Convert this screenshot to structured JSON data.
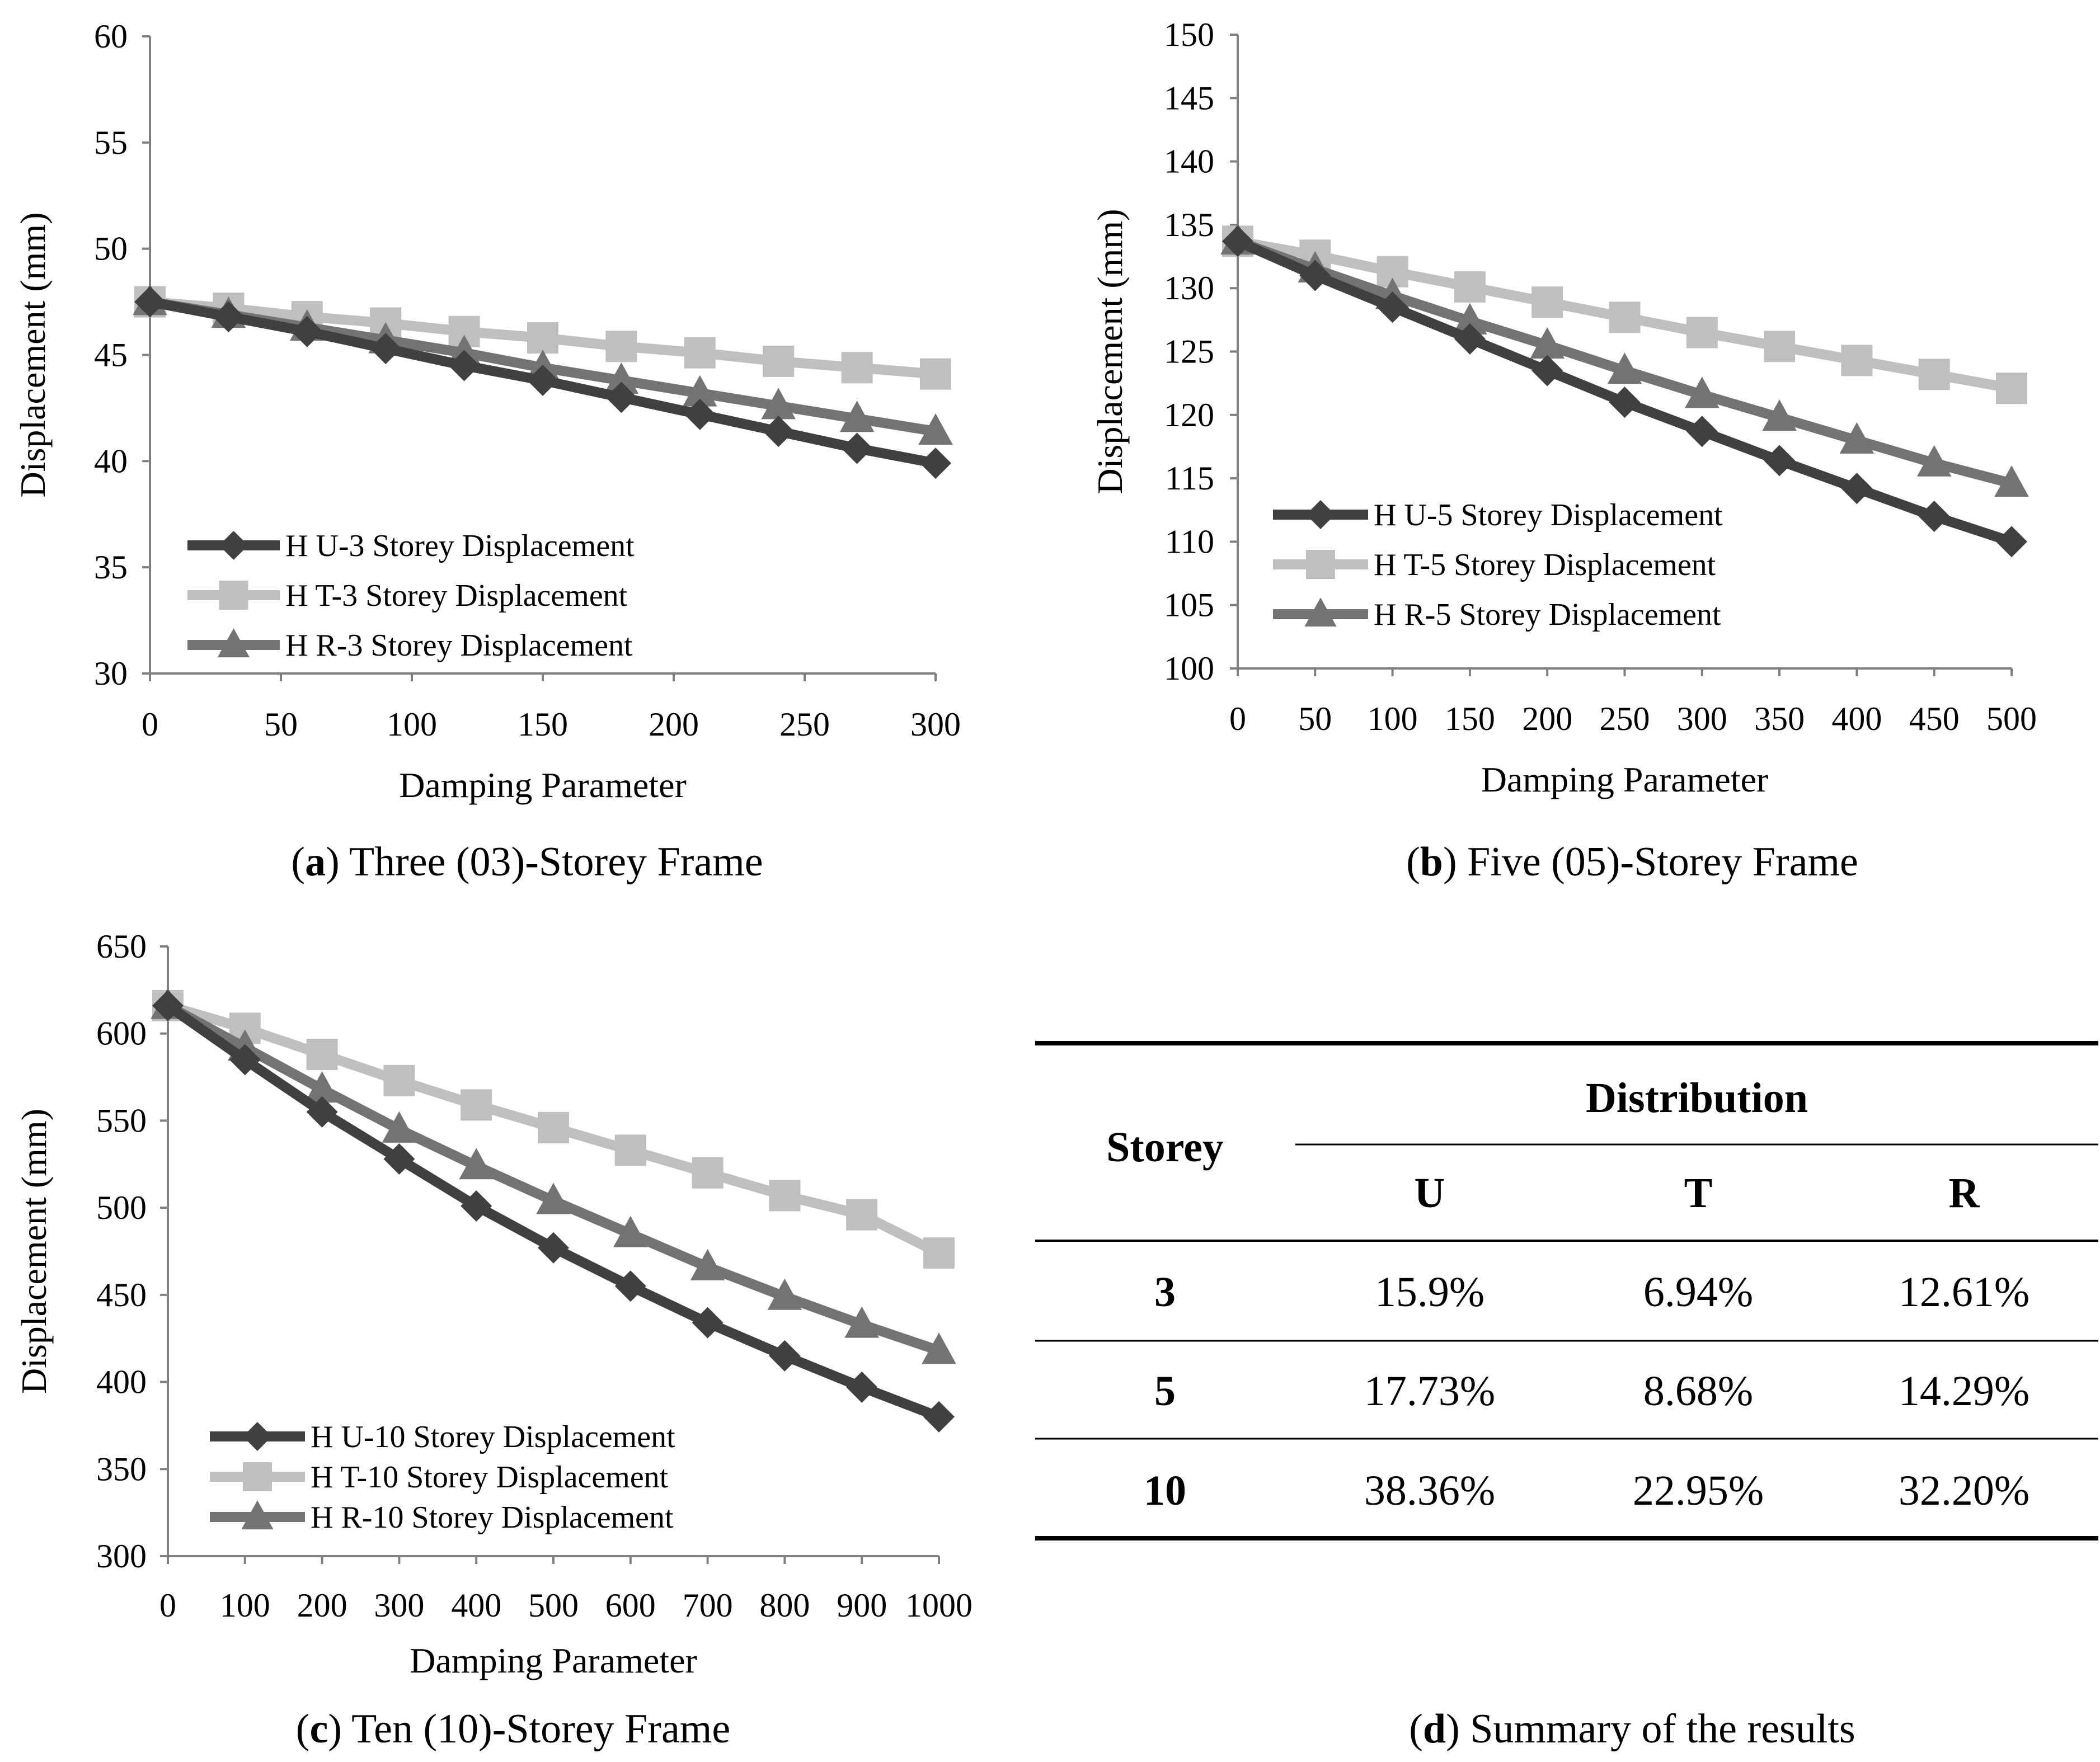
{
  "colors": {
    "U": "#404040",
    "T": "#bfbfbf",
    "R": "#737373",
    "axis": "#7f7f7f"
  },
  "chart_data": [
    {
      "id": "a",
      "type": "line",
      "caption_letter": "a",
      "caption_text": " Three (03)-Storey Frame",
      "xlabel": "Damping Parameter",
      "ylabel": "Displacement  (mm)",
      "xlim": [
        0,
        300
      ],
      "ylim": [
        30,
        60
      ],
      "xticks": [
        0,
        50,
        100,
        150,
        200,
        250,
        300
      ],
      "yticks": [
        30,
        35,
        40,
        45,
        50,
        55,
        60
      ],
      "x": [
        0,
        30,
        60,
        90,
        120,
        150,
        180,
        210,
        240,
        270,
        300
      ],
      "series": [
        {
          "key": "U",
          "marker": "diamond",
          "name": "H U-3 Storey Displacement",
          "values": [
            47.5,
            46.8,
            46.1,
            45.3,
            44.5,
            43.8,
            43.0,
            42.2,
            41.4,
            40.6,
            39.9
          ]
        },
        {
          "key": "T",
          "marker": "square",
          "name": "H T-3 Storey Displacement",
          "values": [
            47.5,
            47.2,
            46.8,
            46.5,
            46.1,
            45.8,
            45.4,
            45.1,
            44.7,
            44.4,
            44.1
          ]
        },
        {
          "key": "R",
          "marker": "triangle",
          "name": "H R-3 Storey Displacement",
          "values": [
            47.5,
            46.9,
            46.3,
            45.7,
            45.1,
            44.4,
            43.8,
            43.2,
            42.6,
            42.0,
            41.4
          ]
        }
      ]
    },
    {
      "id": "b",
      "type": "line",
      "caption_letter": "b",
      "caption_text": " Five (05)-Storey Frame",
      "xlabel": "Damping Parameter",
      "ylabel": "Displacement  (mm)",
      "xlim": [
        0,
        500
      ],
      "ylim": [
        100,
        150
      ],
      "xticks": [
        0,
        50,
        100,
        150,
        200,
        250,
        300,
        350,
        400,
        450,
        500
      ],
      "yticks": [
        100,
        105,
        110,
        115,
        120,
        125,
        130,
        135,
        140,
        145,
        150
      ],
      "x": [
        0,
        50,
        100,
        150,
        200,
        250,
        300,
        350,
        400,
        450,
        500
      ],
      "series": [
        {
          "key": "U",
          "marker": "diamond",
          "name": "H U-5 Storey Displacement",
          "values": [
            133.7,
            131.0,
            128.5,
            126.0,
            123.5,
            121.0,
            118.7,
            116.4,
            114.2,
            112.0,
            110.0
          ]
        },
        {
          "key": "T",
          "marker": "square",
          "name": "H T-5 Storey Displacement",
          "values": [
            133.7,
            132.6,
            131.3,
            130.1,
            128.9,
            127.7,
            126.5,
            125.4,
            124.3,
            123.2,
            122.1
          ]
        },
        {
          "key": "R",
          "marker": "triangle",
          "name": "H R-5 Storey Displacement",
          "values": [
            133.7,
            131.5,
            129.4,
            127.4,
            125.5,
            123.5,
            121.6,
            119.8,
            118.0,
            116.2,
            114.6
          ]
        }
      ]
    },
    {
      "id": "c",
      "type": "line",
      "caption_letter": "c",
      "caption_text": " Ten (10)-Storey Frame",
      "xlabel": "Damping Parameter",
      "ylabel": "Displacement  (mm)",
      "xlim": [
        0,
        1000
      ],
      "ylim": [
        300,
        650
      ],
      "xticks": [
        0,
        100,
        200,
        300,
        400,
        500,
        600,
        700,
        800,
        900,
        1000
      ],
      "yticks": [
        300,
        350,
        400,
        450,
        500,
        550,
        600,
        650
      ],
      "x": [
        0,
        100,
        200,
        300,
        400,
        500,
        600,
        700,
        800,
        900,
        1000
      ],
      "series": [
        {
          "key": "U",
          "marker": "diamond",
          "name": "H U-10 Storey Displacement",
          "values": [
            616,
            585,
            555,
            528,
            501,
            477,
            455,
            434,
            415,
            397,
            380
          ]
        },
        {
          "key": "T",
          "marker": "square",
          "name": "H T-10 Storey Displacement",
          "values": [
            616,
            603,
            588,
            573,
            559,
            546,
            533,
            520,
            507,
            496,
            474
          ]
        },
        {
          "key": "R",
          "marker": "triangle",
          "name": "H R-10 Storey Displacement",
          "values": [
            616,
            592,
            568,
            545,
            524,
            504,
            485,
            466,
            449,
            433,
            418
          ]
        }
      ]
    },
    {
      "id": "d",
      "type": "table",
      "caption_letter": "d",
      "caption_text": " Summary of the results",
      "header_group": "Distribution",
      "row_header": "Storey",
      "columns": [
        "U",
        "T",
        "R"
      ],
      "rows": [
        {
          "storey": "3",
          "cells": [
            "15.9%",
            "6.94%",
            "12.61%"
          ]
        },
        {
          "storey": "5",
          "cells": [
            "17.73%",
            "8.68%",
            "14.29%"
          ]
        },
        {
          "storey": "10",
          "cells": [
            "38.36%",
            "22.95%",
            "32.20%"
          ]
        }
      ]
    }
  ]
}
